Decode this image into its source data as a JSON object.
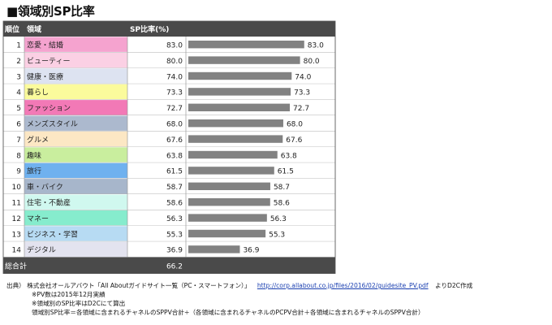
{
  "page_title": "■領域別SP比率",
  "chart_data": {
    "type": "bar",
    "title": "領域別SP比率",
    "columns": {
      "rank": "順位",
      "category": "領域",
      "value": "SP比率(%)"
    },
    "ranks": [
      "1",
      "2",
      "3",
      "4",
      "5",
      "6",
      "7",
      "8",
      "9",
      "10",
      "11",
      "12",
      "13",
      "14"
    ],
    "categories": [
      "恋愛・結婚",
      "ビューティー",
      "健康・医療",
      "暮らし",
      "ファッション",
      "メンズスタイル",
      "グルメ",
      "趣味",
      "旅行",
      "車・バイク",
      "住宅・不動産",
      "マネー",
      "ビジネス・学習",
      "デジタル"
    ],
    "values": [
      83.0,
      80.0,
      74.0,
      73.3,
      72.7,
      68.0,
      67.6,
      63.8,
      61.5,
      58.7,
      58.6,
      56.3,
      55.3,
      36.9
    ],
    "value_labels": [
      "83.0",
      "80.0",
      "74.0",
      "73.3",
      "72.7",
      "68.0",
      "67.6",
      "63.8",
      "61.5",
      "58.7",
      "58.6",
      "56.3",
      "55.3",
      "36.9"
    ],
    "category_colors": [
      "#f5a3cf",
      "#fbd0e4",
      "#dde3f1",
      "#fbfb9c",
      "#f279b6",
      "#acb9ce",
      "#fce7c4",
      "#c9ee9e",
      "#6fb1ef",
      "#a7b6cb",
      "#d0f8ef",
      "#86eccd",
      "#b7dbf3",
      "#e3e3ef"
    ],
    "bar_color": "#828282",
    "xlim": [
      0,
      100
    ],
    "total_label": "総合計",
    "total_value": "66.2",
    "header_color": "#4a4a4a"
  },
  "source": {
    "prefix": "出典）",
    "text": "株式会社オールアバウト「All Aboutガイドサイト一覧（PC・スマートフォン）」",
    "url": "http://corp.allabout.co.jp/files/2016/02/guidesite_PV.pdf",
    "suffix": "よりD2C作成",
    "notes": [
      "※PV数は2015年12月実績",
      "※領域別のSP比率はD2Cにて算出",
      "領域別SP比率＝各領域に含まれるチャネルのSPPV合計÷（各領域に含まれるチャネルのPCPV合計＋各領域に含まれるチャネルのSPPV合計）"
    ]
  }
}
